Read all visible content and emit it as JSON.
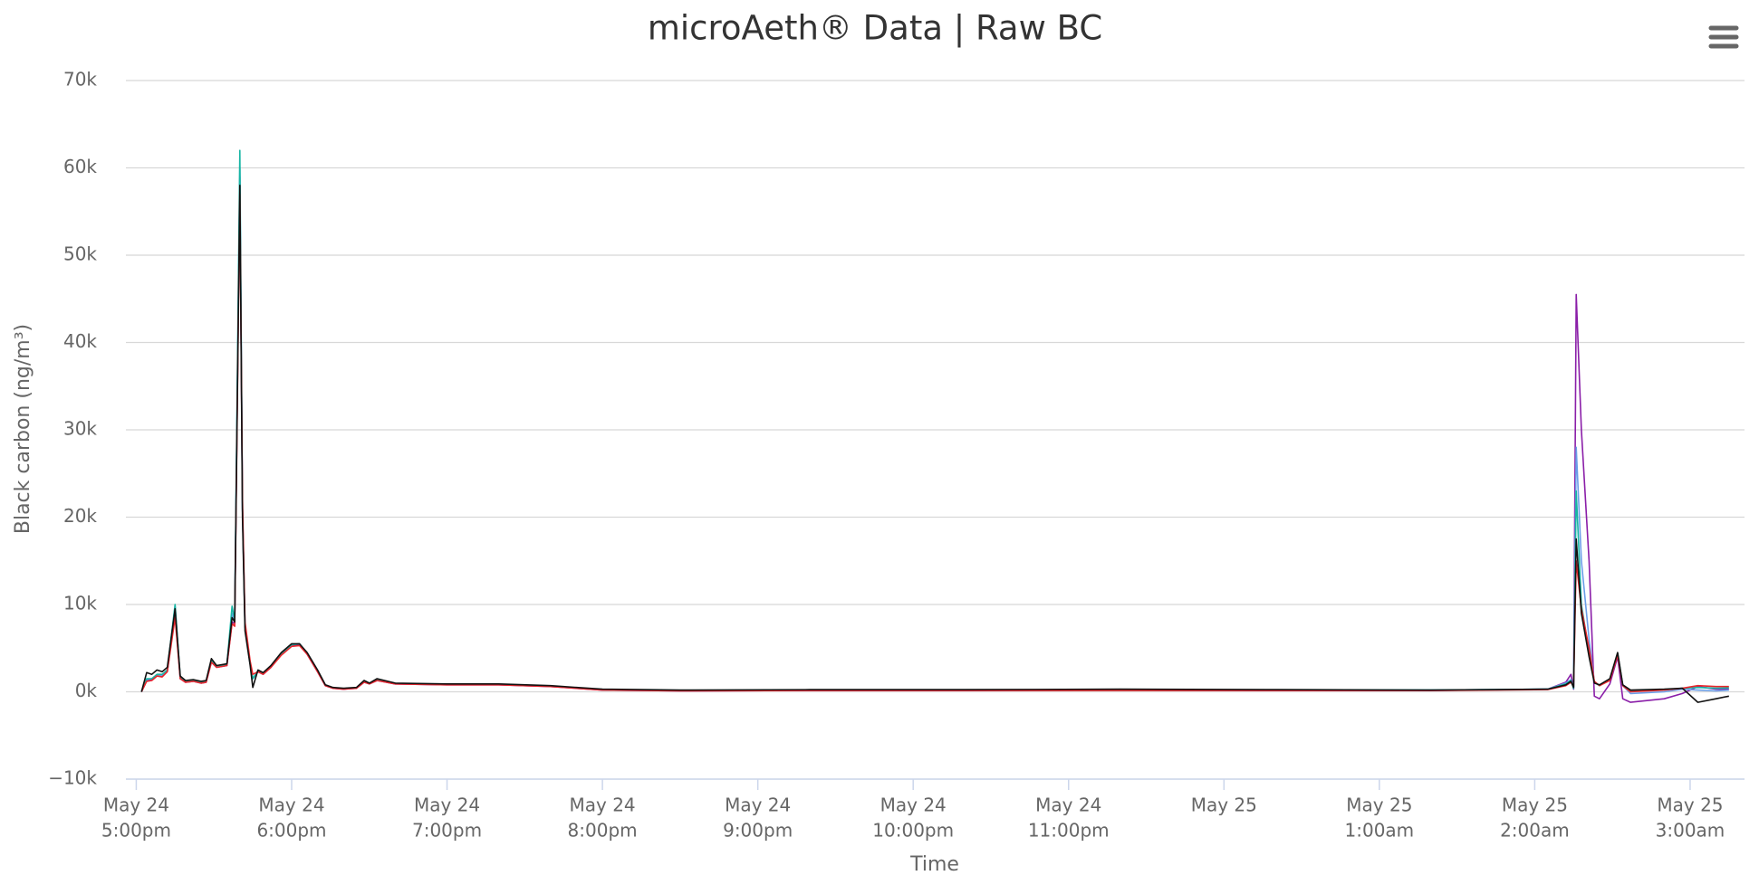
{
  "chart_data": {
    "type": "line",
    "title": "microAeth® Data | Raw BC",
    "x_label": "Time",
    "y_label": "Black carbon (ng/m³)",
    "grid": true,
    "xlim": [
      "May 24 4:56pm",
      "May 25 3:21am"
    ],
    "ylim": [
      -10000,
      70000
    ],
    "yticks": [
      {
        "value": -10000,
        "label": "−10k"
      },
      {
        "value": 0,
        "label": "0k"
      },
      {
        "value": 10000,
        "label": "10k"
      },
      {
        "value": 20000,
        "label": "20k"
      },
      {
        "value": 30000,
        "label": "30k"
      },
      {
        "value": 40000,
        "label": "40k"
      },
      {
        "value": 50000,
        "label": "50k"
      },
      {
        "value": 60000,
        "label": "60k"
      },
      {
        "value": 70000,
        "label": "70k"
      }
    ],
    "xticks": [
      {
        "value": "May 24 5:00pm",
        "label": [
          "May 24",
          "5:00pm"
        ]
      },
      {
        "value": "May 24 6:00pm",
        "label": [
          "May 24",
          "6:00pm"
        ]
      },
      {
        "value": "May 24 7:00pm",
        "label": [
          "May 24",
          "7:00pm"
        ]
      },
      {
        "value": "May 24 8:00pm",
        "label": [
          "May 24",
          "8:00pm"
        ]
      },
      {
        "value": "May 24 9:00pm",
        "label": [
          "May 24",
          "9:00pm"
        ]
      },
      {
        "value": "May 24 10:00pm",
        "label": [
          "May 24",
          "10:00pm"
        ]
      },
      {
        "value": "May 24 11:00pm",
        "label": [
          "May 24",
          "11:00pm"
        ]
      },
      {
        "value": "May 25 12:00am",
        "label": [
          "May 25"
        ]
      },
      {
        "value": "May 25 1:00am",
        "label": [
          "May 25",
          "1:00am"
        ]
      },
      {
        "value": "May 25 2:00am",
        "label": [
          "May 25",
          "2:00am"
        ]
      },
      {
        "value": "May 25 3:00am",
        "label": [
          "May 25",
          "3:00am"
        ]
      }
    ],
    "x": [
      "May 24 5:02pm",
      "May 24 5:04pm",
      "May 24 5:06pm",
      "May 24 5:08pm",
      "May 24 5:10pm",
      "May 24 5:12pm",
      "May 24 5:15pm",
      "May 24 5:17pm",
      "May 24 5:19pm",
      "May 24 5:22pm",
      "May 24 5:25pm",
      "May 24 5:27pm",
      "May 24 5:29pm",
      "May 24 5:31pm",
      "May 24 5:35pm",
      "May 24 5:37pm",
      "May 24 5:38pm",
      "May 24 5:40pm",
      "May 24 5:41pm",
      "May 24 5:42pm",
      "May 24 5:44pm",
      "May 24 5:45pm",
      "May 24 5:47pm",
      "May 24 5:49pm",
      "May 24 5:52pm",
      "May 24 5:56pm",
      "May 24 6:00pm",
      "May 24 6:03pm",
      "May 24 6:06pm",
      "May 24 6:10pm",
      "May 24 6:13pm",
      "May 24 6:16pm",
      "May 24 6:20pm",
      "May 24 6:25pm",
      "May 24 6:28pm",
      "May 24 6:30pm",
      "May 24 6:33pm",
      "May 24 6:40pm",
      "May 24 7:00pm",
      "May 24 7:20pm",
      "May 24 7:40pm",
      "May 24 8:00pm",
      "May 24 8:30pm",
      "May 24 9:20pm",
      "May 24 10:20pm",
      "May 24 11:20pm",
      "May 25 12:20am",
      "May 25 1:20am",
      "May 25 2:05am",
      "May 25 2:12am",
      "May 25 2:14am",
      "May 25 2:15am",
      "May 25 2:16am",
      "May 25 2:18am",
      "May 25 2:21am",
      "May 25 2:23am",
      "May 25 2:25am",
      "May 25 2:29am",
      "May 25 2:32am",
      "May 25 2:34am",
      "May 25 2:37am",
      "May 25 2:50am",
      "May 25 2:57am",
      "May 25 3:03am",
      "May 25 3:10am",
      "May 25 3:15am"
    ],
    "series": [
      {
        "color": "#8a1ea8",
        "values": [
          0,
          1300,
          1400,
          1800,
          1800,
          2300,
          9000,
          1500,
          1100,
          1200,
          1000,
          1100,
          3400,
          2800,
          3000,
          8000,
          7800,
          59000,
          21000,
          7500,
          3200,
          1500,
          2300,
          2000,
          2800,
          4300,
          5300,
          5400,
          4300,
          2300,
          700,
          400,
          300,
          400,
          1100,
          900,
          1300,
          900,
          800,
          800,
          600,
          200,
          100,
          150,
          150,
          200,
          150,
          150,
          300,
          1100,
          2000,
          300,
          45500,
          30000,
          15000,
          -500,
          -800,
          900,
          4000,
          -800,
          -1200,
          -800,
          -200,
          600,
          300,
          300
        ]
      },
      {
        "color": "#6a9ee8",
        "values": [
          0,
          1400,
          1500,
          1900,
          1900,
          2400,
          9800,
          1600,
          1200,
          1300,
          1100,
          1200,
          3500,
          2900,
          3100,
          9000,
          8100,
          60000,
          21000,
          7500,
          3200,
          1500,
          2400,
          2100,
          2900,
          4400,
          5400,
          5500,
          4400,
          2400,
          750,
          450,
          350,
          450,
          1200,
          950,
          1400,
          950,
          850,
          850,
          650,
          250,
          150,
          200,
          200,
          250,
          200,
          200,
          300,
          1000,
          1400,
          400,
          28000,
          15000,
          6000,
          1100,
          700,
          1400,
          4300,
          700,
          -200,
          0,
          300,
          200,
          100,
          200
        ]
      },
      {
        "color": "#18b5a4",
        "values": [
          0,
          1500,
          1500,
          2000,
          2000,
          2500,
          10000,
          1600,
          1200,
          1300,
          1100,
          1200,
          3600,
          2900,
          3100,
          9800,
          8200,
          62000,
          21000,
          7500,
          3200,
          1500,
          2400,
          2100,
          2900,
          4400,
          5400,
          5500,
          4400,
          2400,
          750,
          450,
          350,
          450,
          1200,
          950,
          1400,
          950,
          850,
          850,
          650,
          250,
          150,
          200,
          200,
          250,
          200,
          200,
          300,
          900,
          1300,
          400,
          23000,
          10000,
          4500,
          1100,
          700,
          1400,
          4400,
          750,
          100,
          250,
          400,
          500,
          400,
          450
        ]
      },
      {
        "color": "#e8262b",
        "values": [
          0,
          1200,
          1300,
          1800,
          1700,
          2300,
          8500,
          1500,
          1100,
          1200,
          1000,
          1100,
          3400,
          2800,
          3000,
          7800,
          7500,
          57000,
          22000,
          8000,
          3500,
          2000,
          2300,
          2000,
          2800,
          4200,
          5200,
          5300,
          4300,
          2300,
          700,
          400,
          300,
          400,
          1100,
          900,
          1300,
          900,
          800,
          800,
          600,
          200,
          100,
          150,
          150,
          150,
          150,
          150,
          250,
          700,
          1100,
          600,
          15000,
          9500,
          5000,
          1200,
          700,
          1300,
          4200,
          700,
          0,
          200,
          400,
          700,
          600,
          600
        ]
      },
      {
        "color": "#111111",
        "values": [
          0,
          2200,
          2000,
          2500,
          2300,
          2800,
          9500,
          1800,
          1300,
          1400,
          1200,
          1300,
          3800,
          3000,
          3200,
          8500,
          8000,
          58000,
          20000,
          7000,
          3000,
          500,
          2500,
          2200,
          3000,
          4500,
          5500,
          5500,
          4500,
          2500,
          800,
          500,
          400,
          500,
          1300,
          1000,
          1500,
          1000,
          900,
          900,
          700,
          300,
          200,
          250,
          250,
          300,
          250,
          200,
          300,
          800,
          1200,
          500,
          17500,
          9000,
          4000,
          1000,
          800,
          1500,
          4500,
          800,
          200,
          300,
          400,
          -1200,
          -800,
          -500
        ]
      }
    ]
  }
}
